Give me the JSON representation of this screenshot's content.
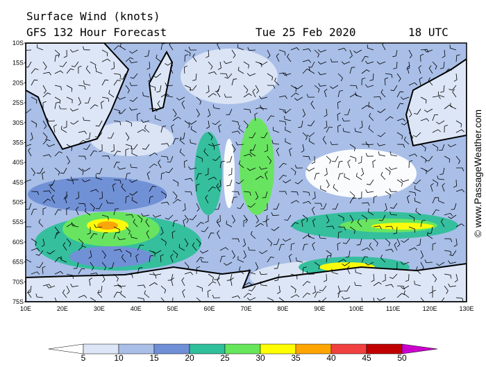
{
  "header": {
    "title": "Surface Wind (knots)",
    "subtitle": "GFS 132 Hour Forecast",
    "date": "Tue 25 Feb 2020",
    "time": "18 UTC"
  },
  "map": {
    "lat_labels": [
      "10S",
      "15S",
      "20S",
      "25S",
      "30S",
      "35S",
      "40S",
      "45S",
      "50S",
      "55S",
      "60S",
      "65S",
      "70S",
      "75S"
    ],
    "lon_labels": [
      "10E",
      "20E",
      "30E",
      "40E",
      "50E",
      "60E",
      "70E",
      "80E",
      "90E",
      "100E",
      "110E",
      "120E",
      "130E"
    ]
  },
  "legend": {
    "labels": [
      5,
      10,
      15,
      20,
      25,
      30,
      35,
      40,
      45,
      50
    ],
    "colors": [
      "#ffffff",
      "#dde6f6",
      "#a9bfe8",
      "#6f8fd6",
      "#2fbf9a",
      "#66e65a",
      "#ffff00",
      "#ffa500",
      "#f04040",
      "#c00000",
      "#cc00cc"
    ]
  },
  "credit": "© www.PassageWeather.com"
}
